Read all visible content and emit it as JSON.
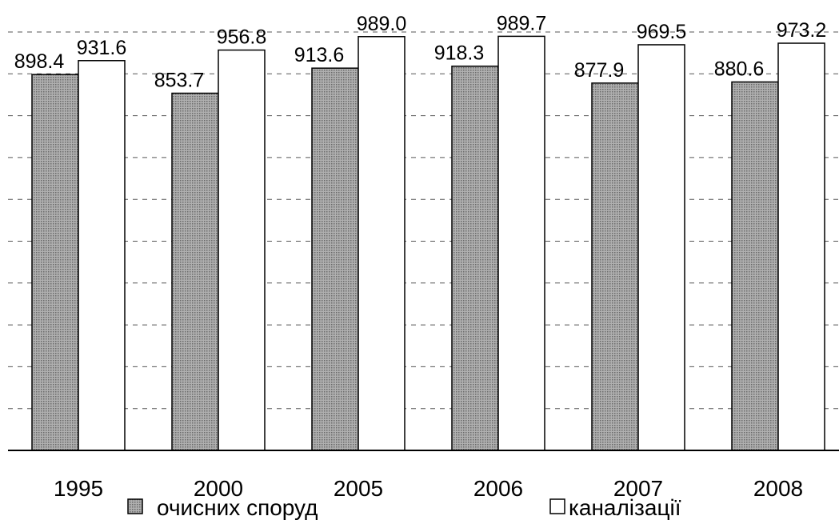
{
  "chart_data": {
    "type": "bar",
    "categories": [
      "1995",
      "2000",
      "2005",
      "2006",
      "2007",
      "2008"
    ],
    "series": [
      {
        "name": "очисних споруд",
        "values": [
          898.4,
          853.7,
          913.6,
          918.3,
          877.9,
          880.6
        ],
        "labels": [
          "898.4",
          "853.7",
          "913.6",
          "918.3",
          "877.9",
          "880.6"
        ]
      },
      {
        "name": "каналізації",
        "values": [
          931.6,
          956.8,
          989.0,
          989.7,
          969.5,
          973.2
        ],
        "labels": [
          "931.6",
          "956.8",
          "989.0",
          "989.7",
          "969.5",
          "973.2"
        ]
      }
    ],
    "ylim": [
      0,
      1000
    ],
    "grid": true,
    "legend": "bottom",
    "colors": {
      "series0_fill": "#9a9a9a",
      "series1_fill": "#ffffff",
      "outline": "#000000"
    }
  }
}
